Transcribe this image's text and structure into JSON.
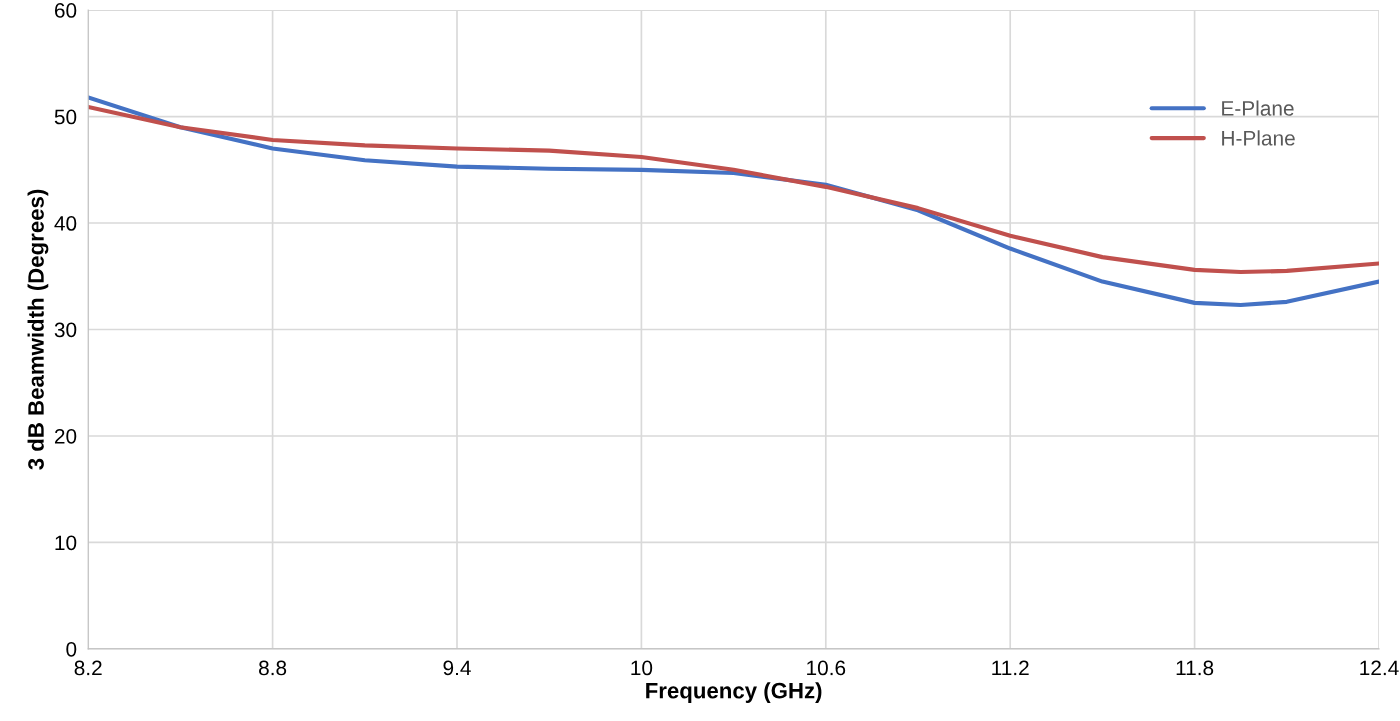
{
  "chart_data": {
    "type": "line",
    "xlabel": "Frequency (GHz)",
    "ylabel": "3 dB Beamwidth (Degrees)",
    "x": [
      8.2,
      8.5,
      8.8,
      9.1,
      9.4,
      9.7,
      10.0,
      10.3,
      10.6,
      10.9,
      11.2,
      11.5,
      11.8,
      11.95,
      12.1,
      12.4
    ],
    "series": [
      {
        "name": "E-Plane",
        "color": "#4472c4",
        "values": [
          51.8,
          49.0,
          47.0,
          45.9,
          45.3,
          45.1,
          45.0,
          44.7,
          43.6,
          41.2,
          37.6,
          34.5,
          32.5,
          32.3,
          32.6,
          34.5
        ]
      },
      {
        "name": "H-Plane",
        "color": "#c0504d",
        "values": [
          50.9,
          49.0,
          47.8,
          47.3,
          47.0,
          46.8,
          46.2,
          45.0,
          43.4,
          41.4,
          38.8,
          36.8,
          35.6,
          35.4,
          35.5,
          36.2
        ]
      }
    ],
    "xlim": [
      8.2,
      12.4
    ],
    "xticks": [
      8.2,
      8.8,
      9.4,
      10,
      10.6,
      11.2,
      11.8,
      12.4
    ],
    "ylim": [
      0,
      60
    ],
    "yticks": [
      0,
      10,
      20,
      30,
      40,
      50,
      60
    ],
    "grid": true,
    "legend": "right",
    "marker": "none",
    "line_style": "solid"
  }
}
